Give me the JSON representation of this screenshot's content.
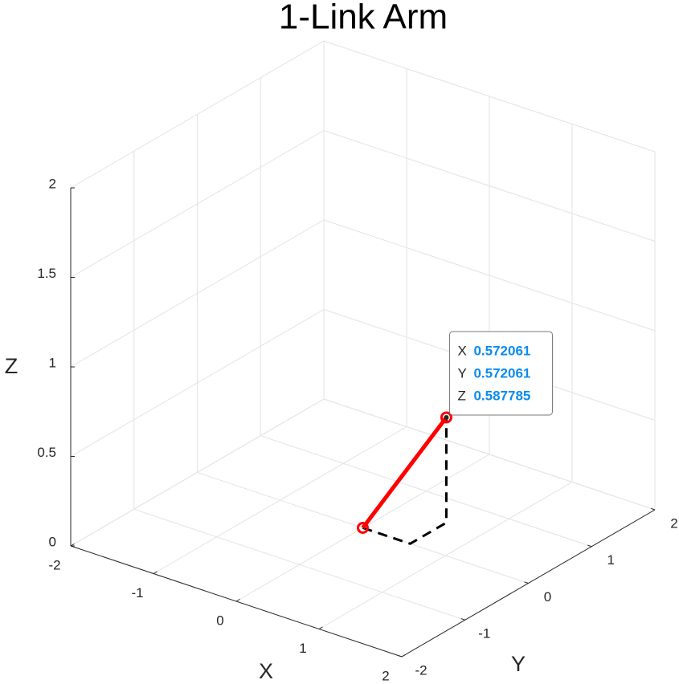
{
  "chart_data": {
    "type": "line3d",
    "title": "1-Link Arm",
    "xlabel": "X",
    "ylabel": "Y",
    "zlabel": "Z",
    "xlim": [
      -2,
      2
    ],
    "ylim": [
      -2,
      2
    ],
    "zlim": [
      0,
      2
    ],
    "xticks": [
      -2,
      -1,
      0,
      1,
      2
    ],
    "yticks": [
      -2,
      -1,
      0,
      1,
      2
    ],
    "zticks": [
      0,
      0.5,
      1,
      1.5,
      2
    ],
    "grid": true,
    "series": [
      {
        "color": "#ff0000",
        "line_style": "solid",
        "marker": "circle",
        "x": [
          0,
          0.572061
        ],
        "y": [
          0,
          0.572061
        ],
        "z": [
          0,
          0.587785
        ]
      },
      {
        "color": "#000000",
        "line_style": "dashed",
        "x": [
          0,
          0.572061,
          0.572061,
          0.572061
        ],
        "y": [
          0,
          0,
          0.572061,
          0.572061
        ],
        "z": [
          0,
          0,
          0,
          0.587785
        ]
      }
    ],
    "datatip": {
      "labels": [
        "X",
        "Y",
        "Z"
      ]
    }
  }
}
